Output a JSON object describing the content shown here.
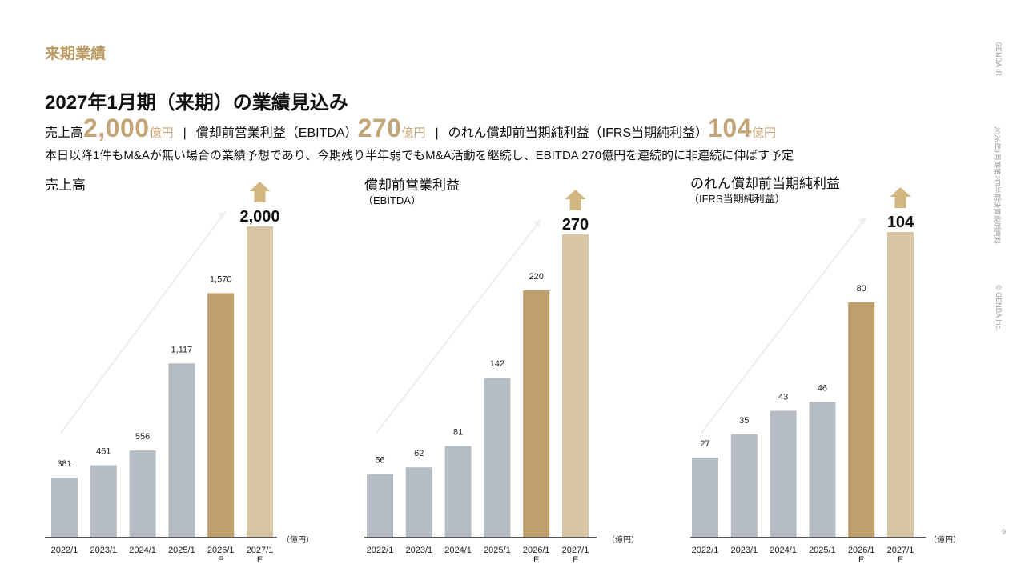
{
  "header": {
    "section": "来期業績",
    "title": "2027年1月期（来期）の業績見込み"
  },
  "summary": {
    "item1_label": "売上高",
    "item1_value": "2,000",
    "item1_unit": "億円",
    "separator": "|",
    "item2_label": "償却前営業利益（EBITDA）",
    "item2_value": "270",
    "item2_unit": "億円",
    "item3_label": "のれん償却前当期純利益（IFRS当期純利益）",
    "item3_value": "104",
    "item3_unit": "億円"
  },
  "note": "本日以降1件もM&Aが無い場合の業績予想であり、今期残り半年弱でもM&A活動を継続し、EBITDA 270億円を連続的に非連続に伸ばす予定",
  "side": {
    "brand": "GENDA IR",
    "doc": "2026年1月期第2四半期決算説明資料",
    "copyright": "© GENDA Inc."
  },
  "page_number": "9",
  "colors": {
    "accent": "#b99a62",
    "actual_bar": "#b5bcc4",
    "current_bar": "#bf9f6c",
    "forecast_bar": "#d8c5a3",
    "arrow": "#d2b680"
  },
  "chart_data": [
    {
      "type": "bar",
      "title": "売上高",
      "subtitle": "",
      "unit_label": "（億円）",
      "categories": [
        "2022/1",
        "2023/1",
        "2024/1",
        "2025/1",
        "2026/1\nE",
        "2027/1\nE"
      ],
      "values": [
        381,
        461,
        556,
        1117,
        1570,
        2000
      ],
      "labels": [
        "381",
        "461",
        "556",
        "1,117",
        "1,570",
        "2,000"
      ],
      "ylim": [
        0,
        2000
      ]
    },
    {
      "type": "bar",
      "title": "償却前営業利益",
      "subtitle": "（EBITDA）",
      "unit_label": "（億円）",
      "categories": [
        "2022/1",
        "2023/1",
        "2024/1",
        "2025/1",
        "2026/1\nE",
        "2027/1\nE"
      ],
      "values": [
        56,
        62,
        81,
        142,
        220,
        270
      ],
      "labels": [
        "56",
        "62",
        "81",
        "142",
        "220",
        "270"
      ],
      "ylim": [
        0,
        270
      ]
    },
    {
      "type": "bar",
      "title": "のれん償却前当期純利益",
      "subtitle": "（IFRS当期純利益）",
      "unit_label": "（億円）",
      "categories": [
        "2022/1",
        "2023/1",
        "2024/1",
        "2025/1",
        "2026/1\nE",
        "2027/1\nE"
      ],
      "values": [
        27,
        35,
        43,
        46,
        80,
        104
      ],
      "labels": [
        "27",
        "35",
        "43",
        "46",
        "80",
        "104"
      ],
      "ylim": [
        0,
        104
      ]
    }
  ]
}
